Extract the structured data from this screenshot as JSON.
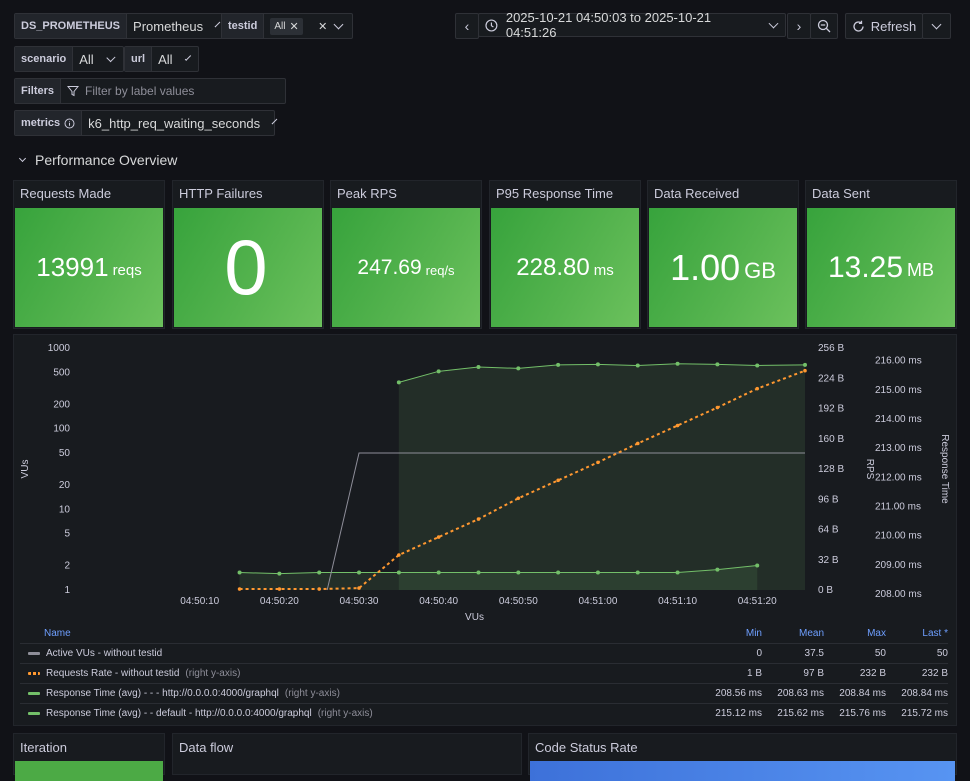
{
  "variables": {
    "ds": {
      "label": "DS_PROMETHEUS",
      "value": "Prometheus"
    },
    "testid": {
      "label": "testid",
      "chip": "All"
    },
    "scenario": {
      "label": "scenario",
      "value": "All"
    },
    "url": {
      "label": "url",
      "value": "All"
    },
    "filters": {
      "label": "Filters",
      "placeholder": "Filter by label values"
    },
    "metrics": {
      "label": "metrics",
      "value": "k6_http_req_waiting_seconds"
    }
  },
  "toolbar": {
    "time_range": "2025-10-21 04:50:03 to 2025-10-21 04:51:26",
    "refresh_label": "Refresh"
  },
  "row": {
    "title": "Performance Overview"
  },
  "stats": [
    {
      "title": "Requests Made",
      "value": "13991",
      "unit": "reqs"
    },
    {
      "title": "HTTP Failures",
      "value": "0",
      "unit": ""
    },
    {
      "title": "Peak RPS",
      "value": "247.69",
      "unit": "req/s"
    },
    {
      "title": "P95 Response Time",
      "value": "228.80",
      "unit": "ms"
    },
    {
      "title": "Data Received",
      "value": "1.00",
      "unit": "GB"
    },
    {
      "title": "Data Sent",
      "value": "13.25",
      "unit": "MB"
    }
  ],
  "chart_data": {
    "type": "line",
    "xlabel": "VUs",
    "x_ticks": [
      "04:50:10",
      "04:50:20",
      "04:50:30",
      "04:50:40",
      "04:50:50",
      "04:51:00",
      "04:51:10",
      "04:51:20"
    ],
    "y_left": {
      "label": "VUs",
      "scale": "log",
      "ticks": [
        "1",
        "2",
        "5",
        "10",
        "20",
        "50",
        "100",
        "200",
        "500",
        "1000"
      ]
    },
    "y_right1": {
      "label": "RPS",
      "ticks": [
        "0 B",
        "32 B",
        "64 B",
        "96 B",
        "128 B",
        "160 B",
        "192 B",
        "224 B",
        "256 B"
      ],
      "range": [
        0,
        256
      ]
    },
    "y_right2": {
      "label": "Response Time",
      "ticks": [
        "208.00 ms",
        "209.00 ms",
        "210.00 ms",
        "211.00 ms",
        "212.00 ms",
        "213.00 ms",
        "214.00 ms",
        "215.00 ms",
        "216.00 ms"
      ],
      "range": [
        208,
        216.3
      ]
    },
    "series": [
      {
        "name": "Active VUs - without testid",
        "color": "#8e8e99",
        "x": [
          "04:50:26",
          "04:50:30",
          "04:51:26"
        ],
        "values": [
          1,
          50,
          50
        ]
      },
      {
        "name": "Requests Rate - without testid",
        "color": "#ff9830",
        "x": [
          "04:50:15",
          "04:50:20",
          "04:50:25",
          "04:50:30",
          "04:50:35",
          "04:50:40",
          "04:50:45",
          "04:50:50",
          "04:50:55",
          "04:51:00",
          "04:51:05",
          "04:51:10",
          "04:51:15",
          "04:51:20",
          "04:51:26"
        ],
        "values": [
          1,
          1,
          1,
          2,
          37,
          56,
          75,
          97,
          116,
          135,
          155,
          174,
          193,
          213,
          232
        ]
      },
      {
        "name": "Response Time (avg) - - - http://0.0.0.0:4000/graphql",
        "color": "#73bf69",
        "x": [
          "04:50:15",
          "04:50:20",
          "04:50:25",
          "04:50:30",
          "04:50:35",
          "04:50:40",
          "04:50:45",
          "04:50:50",
          "04:50:55",
          "04:51:00",
          "04:51:05",
          "04:51:10",
          "04:51:15",
          "04:51:20"
        ],
        "values": [
          208.6,
          208.56,
          208.6,
          208.6,
          208.6,
          208.6,
          208.6,
          208.6,
          208.6,
          208.6,
          208.6,
          208.6,
          208.7,
          208.84
        ]
      },
      {
        "name": "Response Time (avg) - - default - http://0.0.0.0:4000/graphql",
        "color": "#73bf69",
        "x": [
          "04:50:35",
          "04:50:40",
          "04:50:45",
          "04:50:50",
          "04:50:55",
          "04:51:00",
          "04:51:05",
          "04:51:10",
          "04:51:15",
          "04:51:20",
          "04:51:26"
        ],
        "values": [
          215.12,
          215.5,
          215.65,
          215.6,
          215.72,
          215.74,
          215.7,
          215.76,
          215.74,
          215.7,
          215.72
        ]
      }
    ]
  },
  "legend": {
    "headers": {
      "name": "Name",
      "min": "Min",
      "mean": "Mean",
      "max": "Max",
      "last": "Last *"
    },
    "rows": [
      {
        "name": "Active VUs - without testid",
        "suffix": "",
        "color": "#8e8e99",
        "dashed": false,
        "min": "0",
        "mean": "37.5",
        "max": "50",
        "last": "50"
      },
      {
        "name": "Requests Rate - without testid",
        "suffix": "(right y-axis)",
        "color": "#ff9830",
        "dashed": true,
        "min": "1 B",
        "mean": "97 B",
        "max": "232 B",
        "last": "232 B"
      },
      {
        "name": "Response Time (avg) - - - http://0.0.0.0:4000/graphql",
        "suffix": "(right y-axis)",
        "color": "#73bf69",
        "dashed": false,
        "min": "208.56 ms",
        "mean": "208.63 ms",
        "max": "208.84 ms",
        "last": "208.84 ms"
      },
      {
        "name": "Response Time (avg) - - default - http://0.0.0.0:4000/graphql",
        "suffix": "(right y-axis)",
        "color": "#73bf69",
        "dashed": false,
        "min": "215.12 ms",
        "mean": "215.62 ms",
        "max": "215.76 ms",
        "last": "215.72 ms"
      }
    ]
  },
  "bottom_panels": [
    {
      "title": "Iteration"
    },
    {
      "title": "Data flow"
    },
    {
      "title": "Code Status Rate"
    }
  ]
}
